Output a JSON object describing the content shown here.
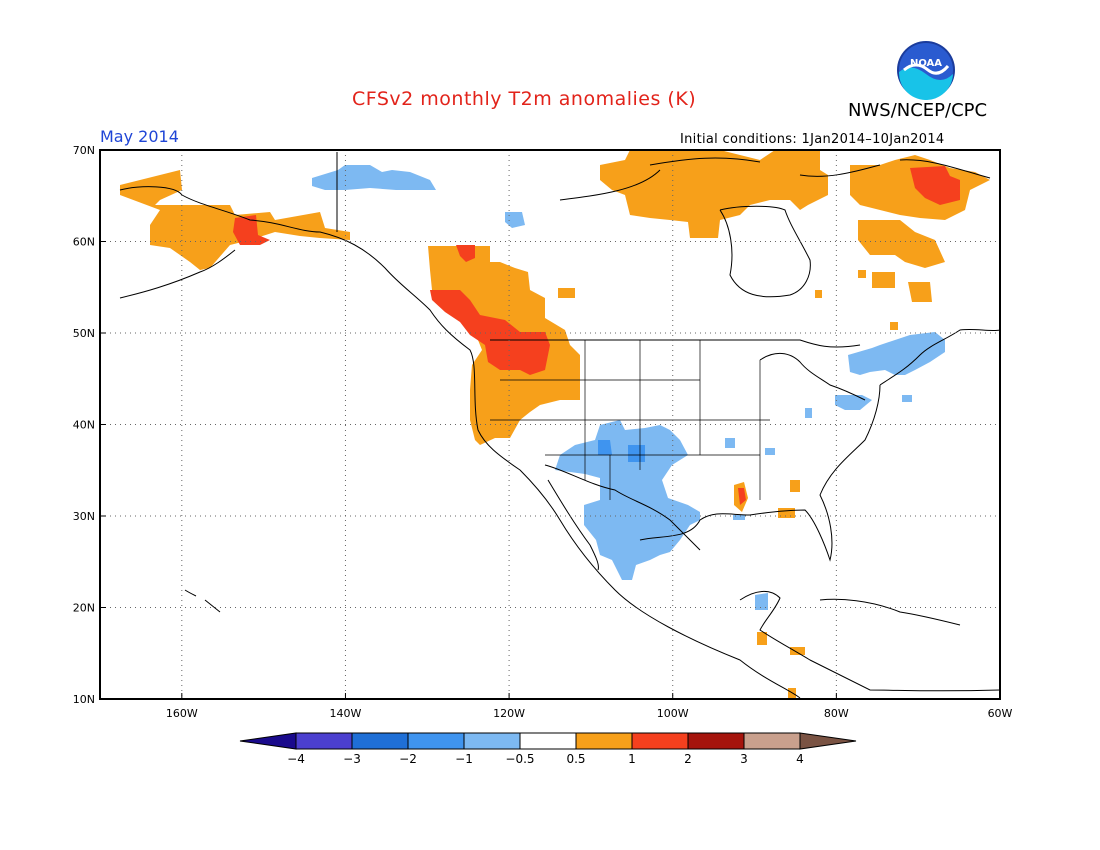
{
  "header": {
    "title": "CFSv2 monthly T2m anomalies (K)",
    "organization": "NWS/NCEP/CPC",
    "month": "May 2014",
    "initial_conditions": "Initial conditions: 1Jan2014–10Jan2014",
    "logo_text": "NOAA"
  },
  "axes": {
    "lat_labels": [
      "70N",
      "60N",
      "50N",
      "40N",
      "30N",
      "20N",
      "10N"
    ],
    "lon_labels": [
      "160W",
      "140W",
      "120W",
      "100W",
      "80W",
      "60W"
    ]
  },
  "colorbar": {
    "labels": [
      "−4",
      "−3",
      "−2",
      "−1",
      "−0.5",
      "0.5",
      "1",
      "2",
      "3",
      "4"
    ],
    "colors": [
      "#1a0a8c",
      "#4b3fcf",
      "#1f6fd6",
      "#3f94ef",
      "#7db9f2",
      "#ffffff",
      "#f7a01a",
      "#f5401e",
      "#a5140c",
      "#c9a08d",
      "#7a5343"
    ]
  },
  "anomaly_legend": {
    "cool_light": "#7db9f2",
    "cool_mid": "#3f94ef",
    "warm_light": "#f7a01a",
    "warm_mid": "#f5401e"
  }
}
